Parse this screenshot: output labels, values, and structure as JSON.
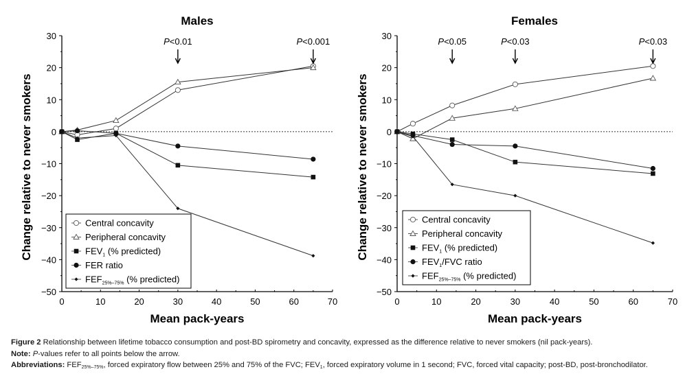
{
  "chart_data": [
    {
      "type": "line",
      "title": "Males",
      "xlabel": "Mean pack-years",
      "ylabel": "Change relative to never smokers",
      "xlim": [
        0,
        70
      ],
      "ylim": [
        -50,
        30
      ],
      "xticks": [
        0,
        10,
        20,
        30,
        40,
        50,
        60,
        70
      ],
      "yticks": [
        30,
        20,
        10,
        0,
        -10,
        -20,
        -30,
        -40,
        -50
      ],
      "ytick_labels": [
        "30",
        "20",
        "10",
        "0",
        "−10",
        "−20",
        "−30",
        "−40",
        "−50"
      ],
      "reference_line": 0,
      "legend_position": "bottom-left",
      "annotations": [
        {
          "text_italic": "P",
          "text": "<0.01",
          "x": 30
        },
        {
          "text_italic": "P",
          "text": "<0.001",
          "x": 65
        }
      ],
      "series": [
        {
          "name": "Central concavity",
          "marker": "open-circle",
          "x": [
            0,
            4,
            14,
            30,
            65
          ],
          "values": [
            0,
            -1,
            1,
            13,
            20.5
          ]
        },
        {
          "name": "Peripheral concavity",
          "marker": "open-triangle",
          "x": [
            0,
            4,
            14,
            30,
            65
          ],
          "values": [
            0,
            0.5,
            3.5,
            15.5,
            20
          ]
        },
        {
          "name": "FEV",
          "sub": "1",
          "suffix": " (% predicted)",
          "marker": "filled-square",
          "x": [
            0,
            4,
            14,
            30,
            65
          ],
          "values": [
            0,
            -2.5,
            -0.5,
            -10.5,
            -14.2
          ]
        },
        {
          "name": "FER ratio",
          "marker": "filled-circle",
          "x": [
            0,
            4,
            14,
            30,
            65
          ],
          "values": [
            0,
            0.3,
            -0.5,
            -4.5,
            -8.6
          ]
        },
        {
          "name": "FEF",
          "sub": "25%–75%",
          "suffix": " (% predicted)",
          "marker": "small-diamond",
          "x": [
            0,
            4,
            14,
            30,
            65
          ],
          "values": [
            0,
            -2,
            -1.2,
            -24,
            -38.8
          ]
        }
      ]
    },
    {
      "type": "line",
      "title": "Females",
      "xlabel": "Mean pack-years",
      "ylabel": "Change relative to never smokers",
      "xlim": [
        0,
        70
      ],
      "ylim": [
        -50,
        30
      ],
      "xticks": [
        0,
        10,
        20,
        30,
        40,
        50,
        60,
        70
      ],
      "yticks": [
        30,
        20,
        10,
        0,
        -10,
        -20,
        -30,
        -40,
        -50
      ],
      "ytick_labels": [
        "30",
        "20",
        "10",
        "0",
        "−10",
        "−20",
        "−30",
        "−40",
        "−50"
      ],
      "reference_line": 0,
      "legend_position": "bottom-left",
      "annotations": [
        {
          "text_italic": "P",
          "text": "<0.05",
          "x": 14
        },
        {
          "text_italic": "P",
          "text": "<0.03",
          "x": 30
        },
        {
          "text_italic": "P",
          "text": "<0.03",
          "x": 65
        }
      ],
      "series": [
        {
          "name": "Central concavity",
          "marker": "open-circle",
          "x": [
            0,
            4,
            14,
            30,
            65
          ],
          "values": [
            0,
            2.5,
            8.2,
            14.8,
            20.5
          ]
        },
        {
          "name": "Peripheral concavity",
          "marker": "open-triangle",
          "x": [
            0,
            4,
            14,
            30,
            65
          ],
          "values": [
            0,
            -2.2,
            4.2,
            7.2,
            16.7
          ]
        },
        {
          "name": "FEV",
          "sub": "1",
          "suffix": " (% predicted)",
          "marker": "filled-square",
          "x": [
            0,
            4,
            14,
            30,
            65
          ],
          "values": [
            0,
            -0.7,
            -2.5,
            -9.5,
            -13.1
          ]
        },
        {
          "name": "FEV",
          "sub": "1",
          "suffix": "/FVC ratio",
          "marker": "filled-circle",
          "x": [
            0,
            4,
            14,
            30,
            65
          ],
          "values": [
            0,
            -1.2,
            -4,
            -4.5,
            -11.5
          ]
        },
        {
          "name": "FEF",
          "sub": "25%–75%",
          "suffix": " (% predicted)",
          "marker": "small-diamond",
          "x": [
            0,
            4,
            14,
            30,
            65
          ],
          "values": [
            0,
            -1.5,
            -16.5,
            -20,
            -34.8
          ]
        }
      ]
    }
  ],
  "caption": {
    "figure_label": "Figure 2",
    "figure_text": " Relationship between lifetime tobacco consumption and post-BD spirometry and concavity, expressed as the difference relative to never smokers (nil pack-years).",
    "note_label": "Note:",
    "note_italic": " P",
    "note_text": "-values refer to all points below the arrow.",
    "abbrev_label": "Abbreviations:",
    "abbrev_fef": " FEF",
    "abbrev_fef_sub": "25%–75%",
    "abbrev_text1": ", forced expiratory flow between 25% and 75% of the FVC; FEV",
    "abbrev_fev_sub": "1",
    "abbrev_text2": ", forced expiratory volume in 1 second; FVC, forced vital capacity; post-BD, post-bronchodilator."
  }
}
